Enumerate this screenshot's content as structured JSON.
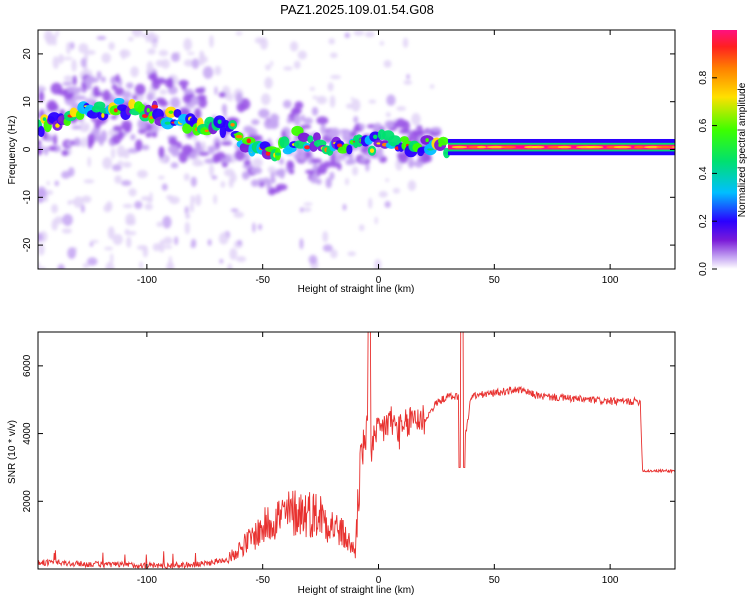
{
  "title": "PAZ1.2025.109.01.54.G08",
  "colors": {
    "snr_line": "#e8312f",
    "axis": "#000000",
    "background": "#ffffff"
  },
  "chart_data": [
    {
      "type": "heatmap",
      "xlabel": "Height of straight line (km)",
      "ylabel": "Frequency (Hz)",
      "xlim": [
        -147,
        128
      ],
      "ylim": [
        -25,
        25
      ],
      "xticks": [
        -100,
        -50,
        0,
        50,
        100
      ],
      "xtick_labels": [
        "-100",
        "-50",
        "0",
        "50",
        "100"
      ],
      "yticks": [
        -20,
        -10,
        0,
        10,
        20
      ],
      "ytick_labels": [
        "-20",
        "-10",
        "0",
        "10",
        "20"
      ],
      "dominant_ridge": {
        "x": [
          -145,
          -135,
          -125,
          -115,
          -105,
          -95,
          -85,
          -75,
          -65,
          -55,
          -45,
          -35,
          -25,
          -15,
          -5,
          5,
          15,
          30,
          50,
          70,
          90,
          110,
          128
        ],
        "frequency_hz": [
          5,
          7,
          8,
          8.5,
          9,
          7.5,
          6,
          5,
          4.5,
          1,
          -1,
          2.5,
          1,
          0,
          1,
          2,
          1,
          0.5,
          0.5,
          0.5,
          1,
          0.5,
          0.5
        ]
      },
      "colorbar": {
        "label": "Normalized spectral amplitude",
        "range": [
          0,
          1
        ],
        "ticks": [
          0.0,
          0.2,
          0.4,
          0.6,
          0.8
        ],
        "tick_labels": [
          "0.0",
          "0.2",
          "0.4",
          "0.6",
          "0.8"
        ],
        "colormap": [
          "#ffffff",
          "#c4a4f2",
          "#7a1bd8",
          "#2a00ff",
          "#00bfff",
          "#00e070",
          "#3cff00",
          "#ffe000",
          "#ff8000",
          "#ff2020",
          "#ff1080"
        ]
      }
    },
    {
      "type": "line",
      "xlabel": "Height of straight line (km)",
      "ylabel": "SNR (10 * v/v)",
      "xlim": [
        -147,
        128
      ],
      "ylim": [
        0,
        7000
      ],
      "xticks": [
        -100,
        -50,
        0,
        50,
        100
      ],
      "xtick_labels": [
        "-100",
        "-50",
        "0",
        "50",
        "100"
      ],
      "yticks": [
        2000,
        4000,
        6000
      ],
      "ytick_labels": [
        "2000",
        "4000",
        "6000"
      ],
      "series": [
        {
          "x": [
            -147,
            -130,
            -110,
            -90,
            -75,
            -65,
            -55,
            -45,
            -35,
            -25,
            -15,
            -10,
            -8,
            -5,
            -3,
            0,
            5,
            10,
            15,
            20,
            25,
            30,
            35,
            36,
            40,
            50,
            60,
            70,
            80,
            90,
            100,
            113,
            114,
            128
          ],
          "values": [
            200,
            150,
            120,
            100,
            150,
            300,
            900,
            1500,
            1700,
            1600,
            1000,
            500,
            3200,
            4000,
            3600,
            4000,
            4400,
            4000,
            4500,
            4400,
            4900,
            5100,
            5100,
            3200,
            5100,
            5200,
            5300,
            5100,
            5050,
            5000,
            4950,
            4950,
            2900,
            2900
          ]
        }
      ]
    }
  ]
}
